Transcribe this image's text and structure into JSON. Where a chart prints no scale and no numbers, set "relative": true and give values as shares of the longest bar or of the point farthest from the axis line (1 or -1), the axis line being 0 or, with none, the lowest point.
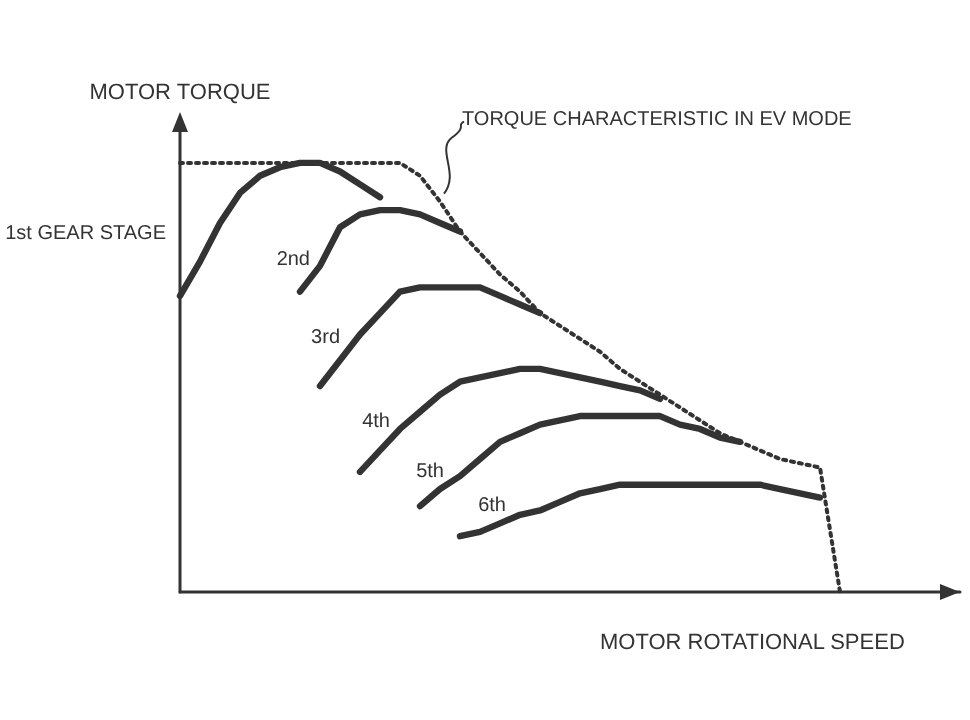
{
  "chart_data": {
    "type": "line",
    "relative": true,
    "xlabel": "MOTOR ROTATIONAL SPEED",
    "ylabel": "MOTOR TORQUE",
    "marker": "none",
    "grid": false,
    "legend": false,
    "categories": [
      null,
      null,
      null,
      null,
      null,
      null,
      null,
      null,
      null,
      null,
      null,
      null,
      null,
      null,
      null,
      null,
      null,
      null,
      null,
      null,
      null,
      null,
      null,
      null,
      null,
      null,
      null,
      null,
      null,
      null,
      null,
      null,
      null,
      null,
      null,
      null,
      null,
      null,
      null,
      null
    ],
    "series": [
      {
        "name": "TORQUE CHARACTERISTIC IN EV MODE",
        "color": "#333333",
        "line_style": "dotted",
        "values": [
          1,
          1,
          1,
          1,
          1,
          1,
          1,
          1,
          1,
          1,
          1,
          1,
          0.97,
          0.91,
          0.84,
          0.79,
          0.74,
          0.7,
          0.65,
          0.62,
          0.59,
          0.56,
          0.52,
          0.49,
          0.46,
          0.43,
          0.4,
          0.37,
          0.35,
          0.33,
          0.31,
          0.3,
          0.29,
          0,
          null,
          null,
          null,
          null,
          null,
          null
        ]
      },
      {
        "name": "1st GEAR STAGE",
        "color": "#333333",
        "line_style": "solid",
        "values": [
          0.69,
          0.77,
          0.86,
          0.93,
          0.97,
          0.99,
          1,
          1,
          0.98,
          0.95,
          0.92,
          null,
          null,
          null,
          null,
          null,
          null,
          null,
          null,
          null,
          null,
          null,
          null,
          null,
          null,
          null,
          null,
          null,
          null,
          null,
          null,
          null,
          null,
          null,
          null,
          null,
          null,
          null,
          null,
          null
        ]
      },
      {
        "name": "2nd",
        "color": "#333333",
        "line_style": "solid",
        "values": [
          null,
          null,
          null,
          null,
          null,
          null,
          0.7,
          0.76,
          0.85,
          0.88,
          0.89,
          0.89,
          0.88,
          0.86,
          0.84,
          null,
          null,
          null,
          null,
          null,
          null,
          null,
          null,
          null,
          null,
          null,
          null,
          null,
          null,
          null,
          null,
          null,
          null,
          null,
          null,
          null,
          null,
          null,
          null,
          null
        ]
      },
      {
        "name": "3rd",
        "color": "#333333",
        "line_style": "solid",
        "values": [
          null,
          null,
          null,
          null,
          null,
          null,
          null,
          0.48,
          0.54,
          0.6,
          0.65,
          0.7,
          0.71,
          0.71,
          0.71,
          0.71,
          0.69,
          0.67,
          0.65,
          null,
          null,
          null,
          null,
          null,
          null,
          null,
          null,
          null,
          null,
          null,
          null,
          null,
          null,
          null,
          null,
          null,
          null,
          null,
          null,
          null
        ]
      },
      {
        "name": "4th",
        "color": "#333333",
        "line_style": "solid",
        "values": [
          null,
          null,
          null,
          null,
          null,
          null,
          null,
          null,
          null,
          0.28,
          0.33,
          0.38,
          0.42,
          0.46,
          0.49,
          0.5,
          0.51,
          0.52,
          0.52,
          0.51,
          0.5,
          0.49,
          0.48,
          0.47,
          0.45,
          null,
          null,
          null,
          null,
          null,
          null,
          null,
          null,
          null,
          null,
          null,
          null,
          null,
          null,
          null
        ]
      },
      {
        "name": "5th",
        "color": "#333333",
        "line_style": "solid",
        "values": [
          null,
          null,
          null,
          null,
          null,
          null,
          null,
          null,
          null,
          null,
          null,
          null,
          0.2,
          0.24,
          0.27,
          0.31,
          0.35,
          0.37,
          0.39,
          0.4,
          0.41,
          0.41,
          0.41,
          0.41,
          0.41,
          0.39,
          0.38,
          0.36,
          0.35,
          null,
          null,
          null,
          null,
          null,
          null,
          null,
          null,
          null,
          null,
          null
        ]
      },
      {
        "name": "6th",
        "color": "#333333",
        "line_style": "solid",
        "values": [
          null,
          null,
          null,
          null,
          null,
          null,
          null,
          null,
          null,
          null,
          null,
          null,
          null,
          null,
          0.13,
          0.14,
          0.16,
          0.18,
          0.19,
          0.21,
          0.23,
          0.24,
          0.25,
          0.25,
          0.25,
          0.25,
          0.25,
          0.25,
          0.25,
          0.25,
          0.24,
          0.23,
          0.22,
          null,
          null,
          null,
          null,
          null,
          null,
          null
        ]
      }
    ]
  }
}
